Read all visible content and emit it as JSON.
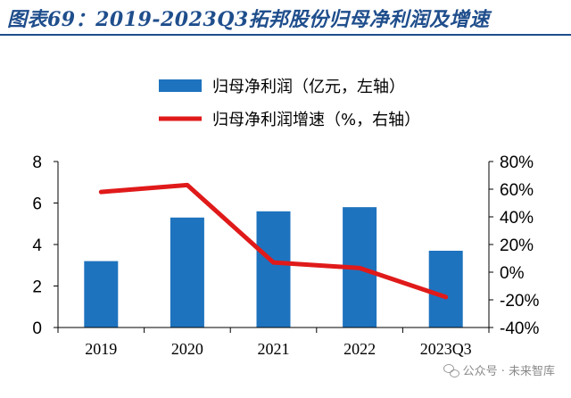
{
  "header": {
    "title": "图表69：2019-2023Q3拓邦股份归母净利润及增速"
  },
  "watermark": {
    "text": "公众号 · 未来智库"
  },
  "colors": {
    "bar": "#1e73be",
    "line": "#e01a1a",
    "title": "#1f4e8c"
  },
  "chart_data": {
    "type": "bar",
    "categories": [
      "2019",
      "2020",
      "2021",
      "2022",
      "2023Q3"
    ],
    "series": [
      {
        "name": "归母净利润（亿元，左轴）",
        "type": "bar",
        "axis": "left",
        "values": [
          3.2,
          5.3,
          5.6,
          5.8,
          3.7
        ]
      },
      {
        "name": "归母净利润增速（%，右轴）",
        "type": "line",
        "axis": "right",
        "values": [
          58,
          63,
          7,
          3,
          -18
        ]
      }
    ],
    "left_axis": {
      "ylim": [
        0,
        8
      ],
      "ticks": [
        "0",
        "2",
        "4",
        "6",
        "8"
      ]
    },
    "right_axis": {
      "ylim": [
        -40,
        80
      ],
      "ticks": [
        "-40%",
        "-20%",
        "0%",
        "20%",
        "40%",
        "60%",
        "80%"
      ]
    },
    "legend_position": "top-center",
    "grid": false
  }
}
